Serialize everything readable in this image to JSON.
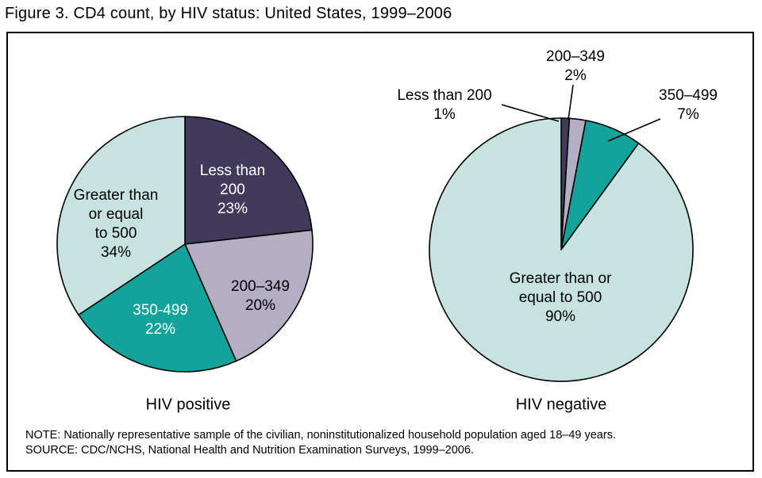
{
  "title": "Figure 3. CD4 count, by HIV status: United States, 1999–2006",
  "note": "NOTE: Nationally representative sample of the civilian, noninstitutionalized household population aged 18–49 years.",
  "source": "SOURCE: CDC/NCHS, National Health and Nutrition Examination Surveys, 1999–2006.",
  "chart_data": [
    {
      "type": "pie",
      "title": "HIV positive",
      "categories": [
        "Less than 200",
        "200–349",
        "350-499",
        "Greater than or equal to 500"
      ],
      "values": [
        23,
        20,
        22,
        34
      ],
      "unit": "%",
      "colors": [
        "#423a5a",
        "#b3aec3",
        "#12a49a",
        "#c6e3e0"
      ],
      "start_angle_deg": 0,
      "direction": "clockwise",
      "slice_labels": [
        "Less than\n200\n23%",
        "200–349\n20%",
        "350-499\n22%",
        "Greater than\nor equal\nto 500\n34%"
      ]
    },
    {
      "type": "pie",
      "title": "HIV negative",
      "categories": [
        "Less than 200",
        "200–349",
        "350–499",
        "Greater than or equal to 500"
      ],
      "values": [
        1,
        2,
        7,
        90
      ],
      "unit": "%",
      "colors": [
        "#423a5a",
        "#b3aec3",
        "#12a49a",
        "#c6e3e0"
      ],
      "start_angle_deg": 0,
      "direction": "clockwise",
      "slice_labels": [
        "Less than 200\n1%",
        "200–349\n2%",
        "350–499\n7%",
        "Greater than or\nequal to 500\n90%"
      ]
    }
  ],
  "stroke_color": "#000000"
}
